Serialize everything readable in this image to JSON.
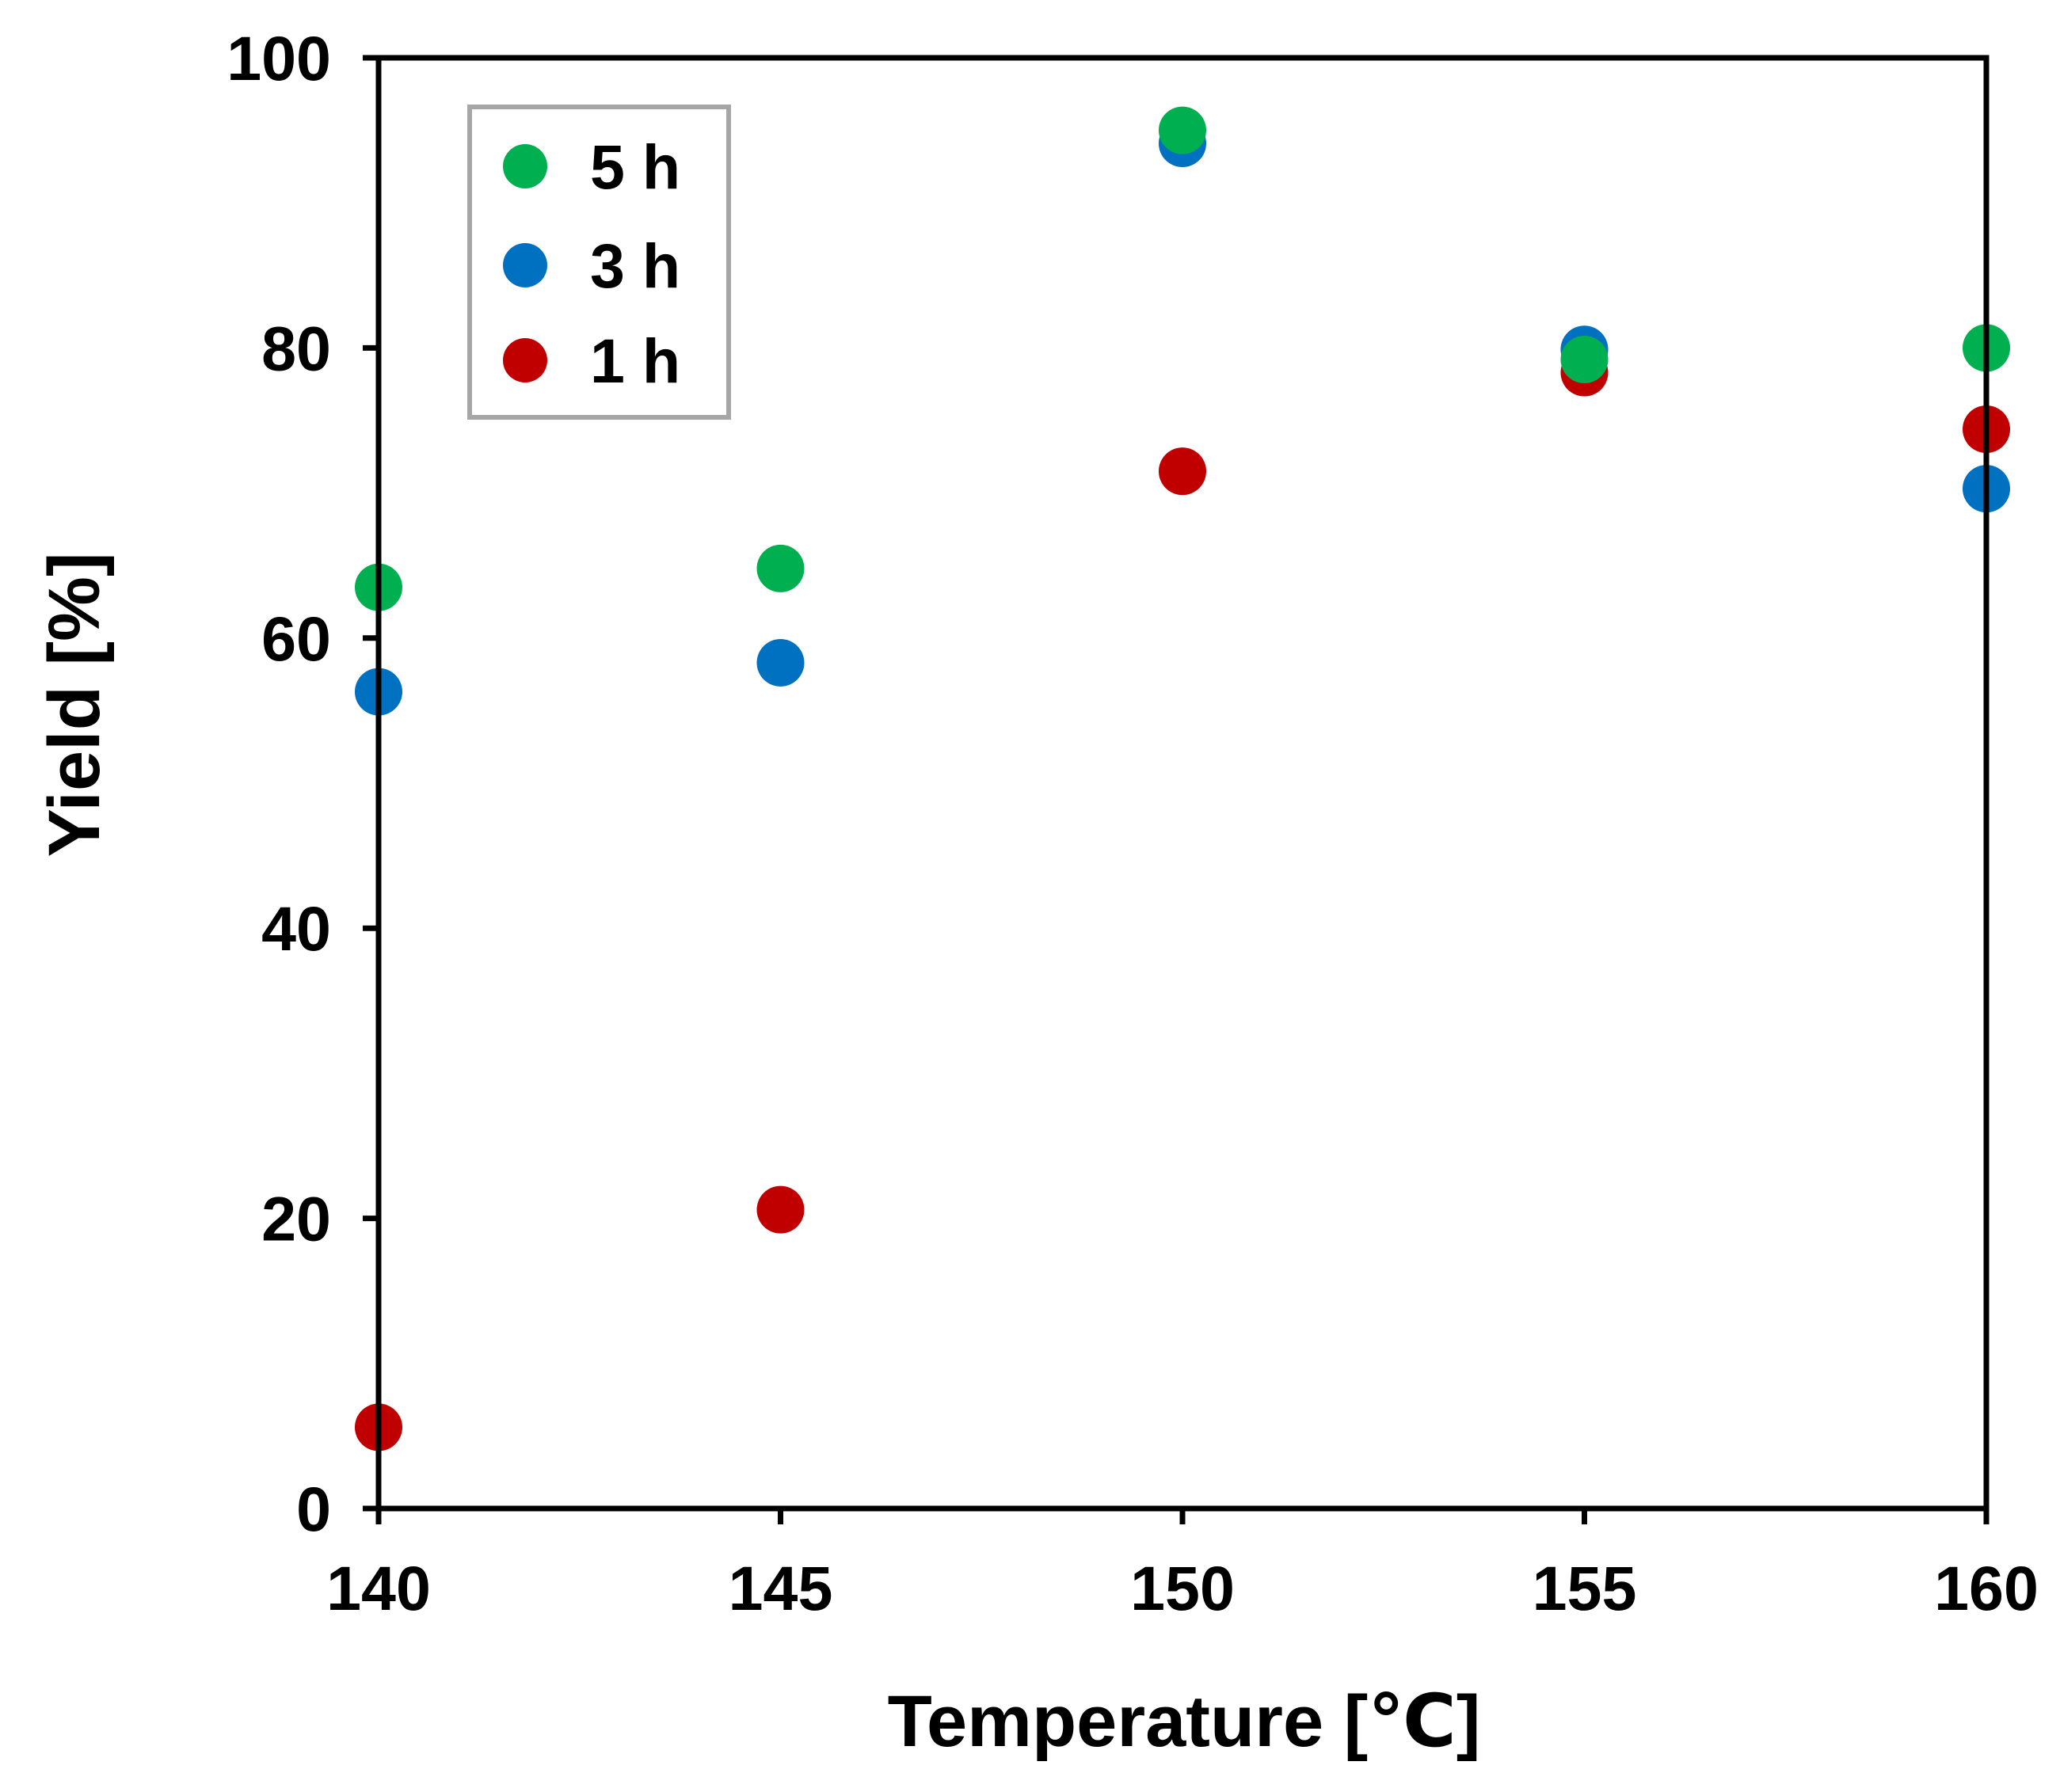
{
  "chart_data": {
    "type": "scatter",
    "title": "",
    "xlabel": "Temperature [℃]",
    "ylabel": "Yield [%]",
    "xlim": [
      140,
      160
    ],
    "ylim": [
      0,
      100
    ],
    "xticks": [
      140,
      145,
      150,
      155,
      160
    ],
    "yticks": [
      0,
      20,
      40,
      60,
      80,
      100
    ],
    "grid": false,
    "legend_position": "top-left",
    "series": [
      {
        "name": "5 h",
        "color": "#00b050",
        "x": [
          140,
          145,
          150,
          155,
          160
        ],
        "y": [
          63.5,
          64.8,
          95.0,
          79.2,
          80.0
        ]
      },
      {
        "name": "3 h",
        "color": "#0070c0",
        "x": [
          140,
          145,
          150,
          155,
          160
        ],
        "y": [
          56.3,
          58.3,
          94.1,
          79.9,
          70.3
        ]
      },
      {
        "name": "1 h",
        "color": "#c00000",
        "x": [
          140,
          145,
          150,
          155,
          160
        ],
        "y": [
          5.6,
          20.6,
          71.5,
          78.3,
          74.4
        ]
      }
    ]
  }
}
